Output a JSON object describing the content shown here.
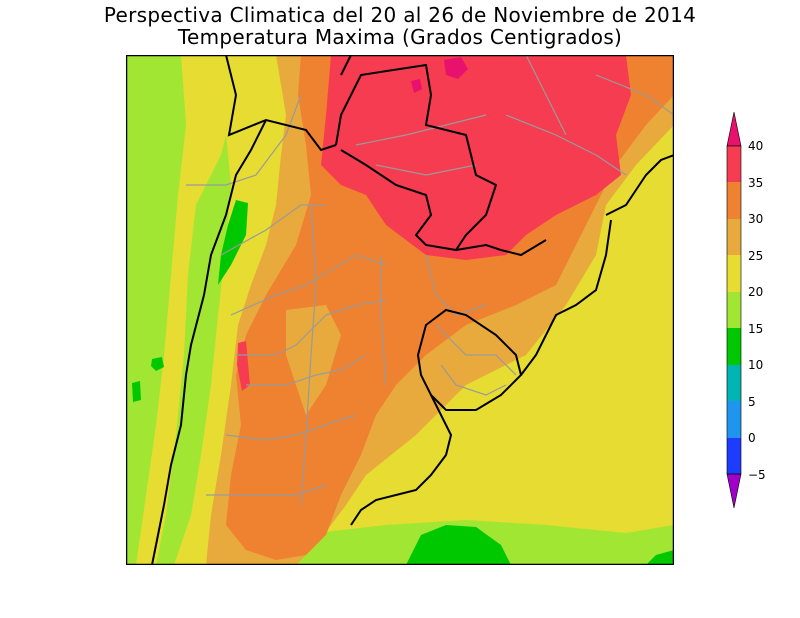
{
  "title_line1": "Perspectiva Climatica del 20 al 26 de Noviembre de 2014",
  "title_line2": "Temperatura Maxima (Grados Centigrados)",
  "legend": {
    "labels": [
      "40",
      "35",
      "30",
      "25",
      "20",
      "15",
      "10",
      "5",
      "0",
      "−5"
    ],
    "colors": {
      "over40": "#e8126e",
      "35_40": "#f53c50",
      "30_35": "#ef8230",
      "25_30": "#e8aa3c",
      "20_25": "#e6dc32",
      "15_20": "#a0e632",
      "10_15": "#00c800",
      "5_10": "#00b4b4",
      "0_5": "#1e96f0",
      "m5_0": "#1e3cff",
      "under_m5": "#a000c8"
    }
  }
}
